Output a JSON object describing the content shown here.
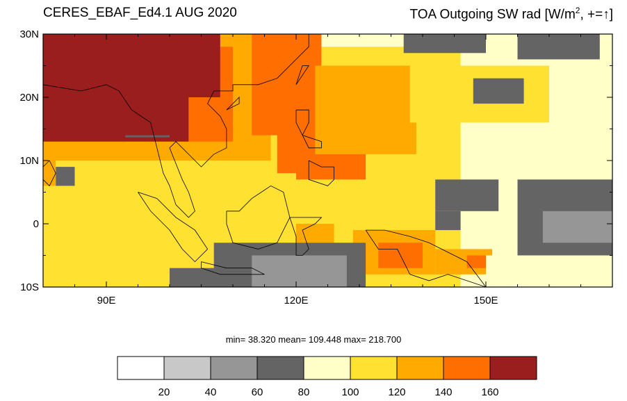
{
  "title_left": "CERES_EBAF_Ed4.1 AUG 2020",
  "title_right": {
    "text": "TOA Outgoing SW rad [W/m",
    "sup": "2",
    "suffix": ", +=↑]"
  },
  "map": {
    "lon_range": [
      80,
      170
    ],
    "lat_range": [
      -10,
      30
    ],
    "lat_ticks": [
      {
        "value": 30,
        "label": "30N"
      },
      {
        "value": 20,
        "label": "20N"
      },
      {
        "value": 10,
        "label": "10N"
      },
      {
        "value": 0,
        "label": "0"
      },
      {
        "value": -10,
        "label": "10S"
      }
    ],
    "lon_ticks": [
      {
        "value": 90,
        "label": "90E"
      },
      {
        "value": 120,
        "label": "120E"
      },
      {
        "value": 150,
        "label": "150E"
      }
    ]
  },
  "stats": {
    "text": "min=  38.320  mean= 109.448  max= 218.700"
  },
  "colorbar": {
    "labels": [
      "20",
      "40",
      "60",
      "80",
      "100",
      "120",
      "140",
      "160"
    ],
    "colors": [
      "#ffffff",
      "#c8c8c8",
      "#969696",
      "#646464",
      "#ffffc8",
      "#ffe132",
      "#ffaa00",
      "#ff6e00",
      "#9b1e1e"
    ]
  },
  "regions": [
    {
      "level": 4,
      "lon": [
        80,
        170
      ],
      "lat": [
        -10,
        30
      ]
    },
    {
      "level": 5,
      "lon": [
        80,
        116
      ],
      "lat": [
        -10,
        11
      ]
    },
    {
      "level": 5,
      "lon": [
        110,
        146
      ],
      "lat": [
        -10,
        28
      ]
    },
    {
      "level": 6,
      "lon": [
        80,
        116
      ],
      "lat": [
        10,
        30
      ]
    },
    {
      "level": 7,
      "lon": [
        80,
        110
      ],
      "lat": [
        13,
        28
      ]
    },
    {
      "level": 8,
      "lon": [
        80,
        103
      ],
      "lat": [
        13,
        30
      ]
    },
    {
      "level": 8,
      "lon": [
        101,
        108
      ],
      "lat": [
        20,
        30
      ]
    },
    {
      "level": 7,
      "lon": [
        113,
        124
      ],
      "lat": [
        14,
        30
      ]
    },
    {
      "level": 7,
      "lon": [
        117,
        131
      ],
      "lat": [
        7,
        19
      ]
    },
    {
      "level": 6,
      "lon": [
        123,
        139
      ],
      "lat": [
        11,
        25
      ]
    },
    {
      "level": 5,
      "lon": [
        138,
        160
      ],
      "lat": [
        16,
        25
      ]
    },
    {
      "level": 3,
      "lon": [
        93,
        100
      ],
      "lat": [
        14,
        14
      ]
    },
    {
      "level": 3,
      "lon": [
        82,
        85
      ],
      "lat": [
        6,
        9
      ]
    },
    {
      "level": 6,
      "lon": [
        80,
        82
      ],
      "lat": [
        6,
        10
      ]
    },
    {
      "level": 5,
      "lon": [
        110,
        120
      ],
      "lat": [
        1,
        8
      ]
    },
    {
      "level": 6,
      "lon": [
        120,
        126
      ],
      "lat": [
        -4,
        0
      ]
    },
    {
      "level": 6,
      "lon": [
        129,
        142
      ],
      "lat": [
        -8,
        -1
      ]
    },
    {
      "level": 7,
      "lon": [
        133,
        140
      ],
      "lat": [
        -7,
        -3
      ]
    },
    {
      "level": 6,
      "lon": [
        142,
        151
      ],
      "lat": [
        -8,
        -4
      ]
    },
    {
      "level": 7,
      "lon": [
        147,
        150
      ],
      "lat": [
        -7,
        -5
      ]
    },
    {
      "level": 3,
      "lon": [
        107,
        131
      ],
      "lat": [
        -10,
        -3
      ]
    },
    {
      "level": 2,
      "lon": [
        113,
        128
      ],
      "lat": [
        -10,
        -5
      ]
    },
    {
      "level": 3,
      "lon": [
        100,
        110
      ],
      "lat": [
        -10,
        -7
      ]
    },
    {
      "level": 3,
      "lon": [
        137,
        150
      ],
      "lat": [
        27,
        30
      ]
    },
    {
      "level": 3,
      "lon": [
        155,
        168
      ],
      "lat": [
        26,
        30
      ]
    },
    {
      "level": 3,
      "lon": [
        148,
        156
      ],
      "lat": [
        19,
        23
      ]
    },
    {
      "level": 3,
      "lon": [
        155,
        170
      ],
      "lat": [
        -5,
        7
      ]
    },
    {
      "level": 2,
      "lon": [
        159,
        170
      ],
      "lat": [
        -3,
        2
      ]
    },
    {
      "level": 3,
      "lon": [
        142,
        152
      ],
      "lat": [
        2,
        7
      ]
    },
    {
      "level": 3,
      "lon": [
        142,
        146
      ],
      "lat": [
        -1,
        2
      ]
    },
    {
      "level": 4,
      "lon": [
        150,
        159
      ],
      "lat": [
        -10,
        -5
      ]
    }
  ],
  "coastlines": [
    [
      [
        80,
        22
      ],
      [
        86,
        21
      ],
      [
        90,
        22
      ],
      [
        92,
        21
      ],
      [
        94,
        18
      ],
      [
        97,
        16
      ],
      [
        98,
        12
      ],
      [
        99,
        8
      ],
      [
        100,
        6
      ],
      [
        101,
        3
      ],
      [
        103,
        1
      ],
      [
        104,
        2
      ],
      [
        103,
        5
      ],
      [
        102,
        7
      ],
      [
        100,
        12
      ],
      [
        101,
        13
      ],
      [
        103,
        11
      ],
      [
        105,
        9
      ],
      [
        107,
        11
      ],
      [
        109,
        12
      ],
      [
        109,
        15
      ],
      [
        108,
        17
      ],
      [
        106,
        19
      ],
      [
        107,
        21
      ],
      [
        110,
        21
      ],
      [
        110,
        22
      ],
      [
        114,
        22
      ],
      [
        117,
        23
      ],
      [
        120,
        26
      ],
      [
        122,
        28
      ],
      [
        122,
        30
      ]
    ],
    [
      [
        95,
        5
      ],
      [
        98,
        4
      ],
      [
        101,
        1
      ],
      [
        104,
        -1
      ],
      [
        106,
        -4
      ],
      [
        104,
        -6
      ],
      [
        102,
        -4
      ],
      [
        100,
        -1
      ],
      [
        97,
        2
      ],
      [
        95,
        5
      ]
    ],
    [
      [
        105,
        -6
      ],
      [
        109,
        -7
      ],
      [
        113,
        -7
      ],
      [
        115,
        -8
      ],
      [
        112,
        -8
      ],
      [
        108,
        -8
      ],
      [
        105,
        -7
      ],
      [
        105,
        -6
      ]
    ],
    [
      [
        109,
        2
      ],
      [
        111,
        2
      ],
      [
        113,
        4
      ],
      [
        116,
        6
      ],
      [
        118,
        5
      ],
      [
        119,
        1
      ],
      [
        117,
        -3
      ],
      [
        114,
        -4
      ],
      [
        110,
        -3
      ],
      [
        109,
        0
      ],
      [
        109,
        2
      ]
    ],
    [
      [
        119,
        1
      ],
      [
        121,
        1
      ],
      [
        124,
        1
      ],
      [
        123,
        0
      ],
      [
        121,
        -1
      ],
      [
        122,
        -4
      ],
      [
        121,
        -5
      ],
      [
        120,
        -5
      ],
      [
        120,
        -2
      ],
      [
        119,
        1
      ]
    ],
    [
      [
        131,
        -1
      ],
      [
        134,
        -1
      ],
      [
        138,
        -2
      ],
      [
        141,
        -3
      ],
      [
        145,
        -5
      ],
      [
        147,
        -6
      ],
      [
        150,
        -10
      ],
      [
        147,
        -9
      ],
      [
        144,
        -8
      ],
      [
        141,
        -9
      ],
      [
        138,
        -8
      ],
      [
        136,
        -4
      ],
      [
        133,
        -4
      ],
      [
        131,
        -1
      ]
    ],
    [
      [
        120,
        18
      ],
      [
        122,
        18
      ],
      [
        122,
        16
      ],
      [
        121,
        14
      ],
      [
        124,
        13
      ],
      [
        124,
        12
      ],
      [
        122,
        12
      ],
      [
        121,
        14
      ],
      [
        120,
        16
      ],
      [
        120,
        18
      ]
    ],
    [
      [
        122,
        10
      ],
      [
        124,
        9
      ],
      [
        126,
        9
      ],
      [
        126,
        7
      ],
      [
        125,
        6
      ],
      [
        122,
        7
      ],
      [
        122,
        10
      ]
    ],
    [
      [
        120,
        22
      ],
      [
        122,
        25
      ],
      [
        121,
        25
      ],
      [
        120,
        22
      ]
    ],
    [
      [
        109,
        18
      ],
      [
        111,
        20
      ],
      [
        111,
        19
      ],
      [
        109,
        18
      ]
    ],
    [
      [
        80,
        9
      ],
      [
        81,
        10
      ],
      [
        82,
        8
      ],
      [
        81,
        6
      ],
      [
        80,
        7
      ],
      [
        80,
        9
      ]
    ]
  ]
}
